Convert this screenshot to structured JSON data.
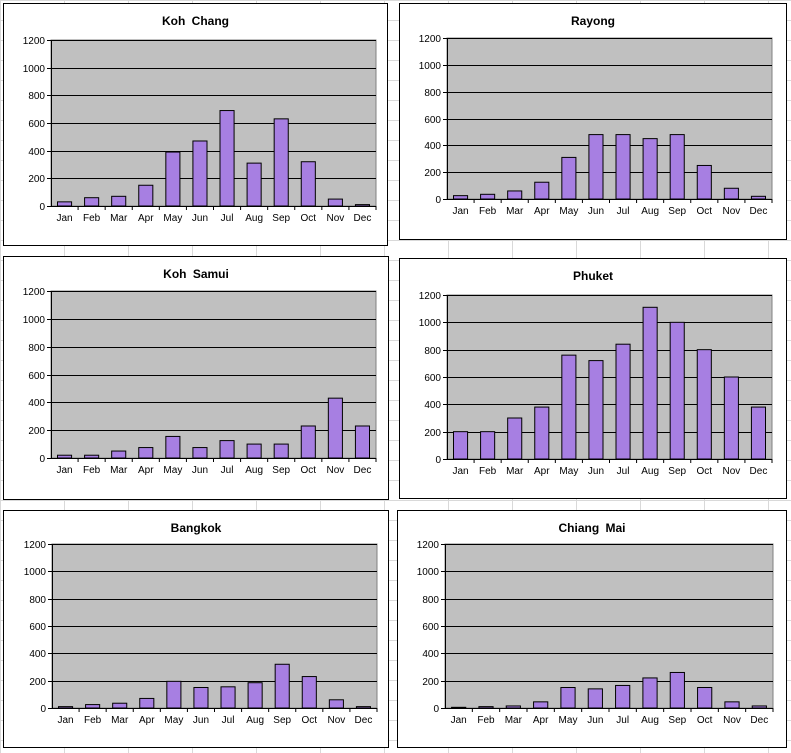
{
  "colors": {
    "plot_bg": "#c0c0c0",
    "bar_fill": "#a77fe2",
    "bar_stroke": "#000000"
  },
  "chart_data": [
    {
      "type": "bar",
      "title": "Koh Chang",
      "categories": [
        "Jan",
        "Feb",
        "Mar",
        "Apr",
        "May",
        "Jun",
        "Jul",
        "Aug",
        "Sep",
        "Oct",
        "Nov",
        "Dec"
      ],
      "values": [
        30,
        60,
        70,
        150,
        390,
        470,
        690,
        310,
        630,
        320,
        50,
        10
      ],
      "ylim": [
        0,
        1200
      ],
      "yticks": [
        0,
        200,
        400,
        600,
        800,
        1000,
        1200
      ],
      "grid": true
    },
    {
      "type": "bar",
      "title": "Rayong",
      "categories": [
        "Jan",
        "Feb",
        "Mar",
        "Apr",
        "May",
        "Jun",
        "Jul",
        "Aug",
        "Sep",
        "Oct",
        "Nov",
        "Dec"
      ],
      "values": [
        25,
        35,
        60,
        125,
        310,
        480,
        480,
        450,
        480,
        250,
        80,
        20
      ],
      "ylim": [
        0,
        1200
      ],
      "yticks": [
        0,
        200,
        400,
        600,
        800,
        1000,
        1200
      ],
      "grid": true
    },
    {
      "type": "bar",
      "title": "Koh Samui",
      "categories": [
        "Jan",
        "Feb",
        "Mar",
        "Apr",
        "May",
        "Jun",
        "Jul",
        "Aug",
        "Sep",
        "Oct",
        "Nov",
        "Dec"
      ],
      "values": [
        20,
        20,
        50,
        75,
        155,
        75,
        125,
        100,
        100,
        230,
        430,
        230
      ],
      "ylim": [
        0,
        1200
      ],
      "yticks": [
        0,
        200,
        400,
        600,
        800,
        1000,
        1200
      ],
      "grid": true
    },
    {
      "type": "bar",
      "title": "Phuket",
      "categories": [
        "Jan",
        "Feb",
        "Mar",
        "Apr",
        "May",
        "Jun",
        "Jul",
        "Aug",
        "Sep",
        "Oct",
        "Nov",
        "Dec"
      ],
      "values": [
        200,
        200,
        300,
        380,
        760,
        720,
        840,
        1110,
        1000,
        800,
        600,
        380
      ],
      "ylim": [
        0,
        1200
      ],
      "yticks": [
        0,
        200,
        400,
        600,
        800,
        1000,
        1200
      ],
      "grid": true
    },
    {
      "type": "bar",
      "title": "Bangkok",
      "categories": [
        "Jan",
        "Feb",
        "Mar",
        "Apr",
        "May",
        "Jun",
        "Jul",
        "Aug",
        "Sep",
        "Oct",
        "Nov",
        "Dec"
      ],
      "values": [
        10,
        25,
        35,
        70,
        195,
        150,
        155,
        185,
        320,
        230,
        60,
        10
      ],
      "ylim": [
        0,
        1200
      ],
      "yticks": [
        0,
        200,
        400,
        600,
        800,
        1000,
        1200
      ],
      "grid": true
    },
    {
      "type": "bar",
      "title": "Chiang Mai",
      "categories": [
        "Jan",
        "Feb",
        "Mar",
        "Apr",
        "May",
        "Jun",
        "Jul",
        "Aug",
        "Sep",
        "Oct",
        "Nov",
        "Dec"
      ],
      "values": [
        5,
        10,
        15,
        45,
        150,
        140,
        165,
        220,
        260,
        150,
        45,
        15
      ],
      "ylim": [
        0,
        1200
      ],
      "yticks": [
        0,
        200,
        400,
        600,
        800,
        1000,
        1200
      ],
      "grid": true
    }
  ]
}
